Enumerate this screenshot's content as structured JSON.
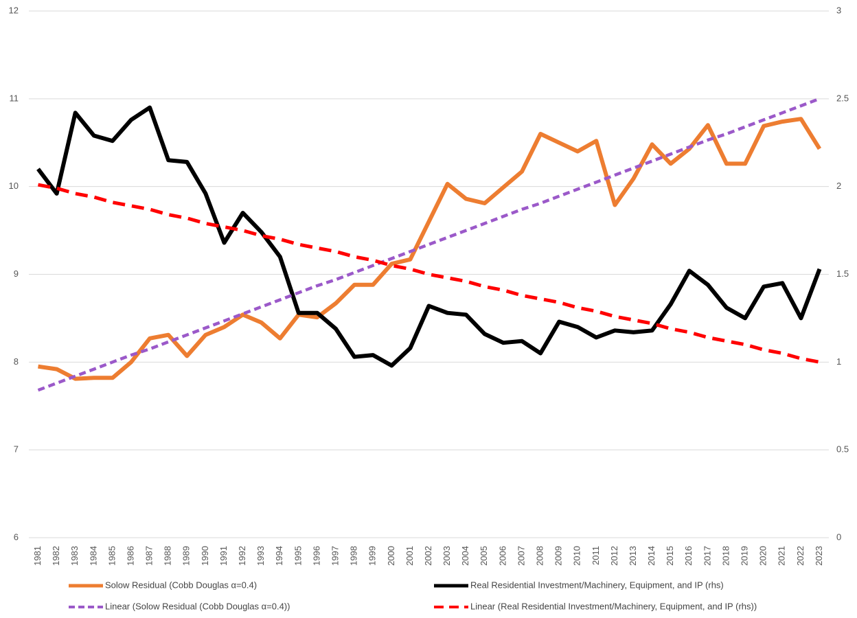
{
  "chart_data": {
    "type": "line",
    "categories": [
      "1981",
      "1982",
      "1983",
      "1984",
      "1985",
      "1986",
      "1987",
      "1988",
      "1989",
      "1990",
      "1991",
      "1992",
      "1993",
      "1994",
      "1995",
      "1996",
      "1997",
      "1998",
      "1999",
      "2000",
      "2001",
      "2002",
      "2003",
      "2004",
      "2005",
      "2006",
      "2007",
      "2008",
      "2009",
      "2010",
      "2011",
      "2012",
      "2013",
      "2014",
      "2015",
      "2016",
      "2017",
      "2018",
      "2019",
      "2020",
      "2021",
      "2022",
      "2023"
    ],
    "ylim": [
      6,
      12
    ],
    "yticks": [
      6,
      7,
      8,
      9,
      10,
      11,
      12
    ],
    "y2lim": [
      0,
      3
    ],
    "y2ticks": [
      0,
      0.5,
      1,
      1.5,
      2,
      2.5,
      3
    ],
    "grid": true,
    "legend": "bottom",
    "series": [
      {
        "name": "Solow Residual (Cobb Douglas α=0.4)",
        "color": "#ed7d31",
        "style": "solid",
        "axis": "y",
        "values": [
          7.95,
          7.92,
          7.81,
          7.82,
          7.82,
          8.0,
          8.27,
          8.31,
          8.07,
          8.31,
          8.4,
          8.54,
          8.45,
          8.27,
          8.54,
          8.51,
          8.67,
          8.88,
          8.88,
          9.12,
          9.17,
          9.6,
          10.03,
          9.86,
          9.81,
          9.99,
          10.17,
          10.6,
          10.5,
          10.4,
          10.52,
          9.79,
          10.09,
          10.48,
          10.26,
          10.43,
          10.7,
          10.26,
          10.26,
          10.69,
          10.74,
          10.77,
          10.43
        ]
      },
      {
        "name": "Real Residential Investment/Machinery, Equipment, and IP (rhs)",
        "color": "#000000",
        "style": "solid",
        "axis": "y2",
        "values": [
          2.1,
          1.96,
          2.42,
          2.29,
          2.26,
          2.38,
          2.45,
          2.15,
          2.14,
          1.96,
          1.68,
          1.85,
          1.74,
          1.6,
          1.28,
          1.28,
          1.19,
          1.03,
          1.04,
          0.98,
          1.08,
          1.32,
          1.28,
          1.27,
          1.16,
          1.11,
          1.12,
          1.05,
          1.23,
          1.2,
          1.14,
          1.18,
          1.17,
          1.18,
          1.33,
          1.52,
          1.44,
          1.31,
          1.25,
          1.43,
          1.45,
          1.25,
          1.53
        ]
      },
      {
        "name": "Linear (Solow Residual (Cobb Douglas α=0.4))",
        "color": "#9b59c9",
        "style": "dashed",
        "axis": "y",
        "values": [
          7.68,
          7.76,
          7.84,
          7.92,
          8.0,
          8.08,
          8.15,
          8.23,
          8.31,
          8.39,
          8.47,
          8.55,
          8.63,
          8.71,
          8.79,
          8.87,
          8.94,
          9.02,
          9.1,
          9.18,
          9.26,
          9.34,
          9.42,
          9.5,
          9.58,
          9.66,
          9.74,
          9.81,
          9.89,
          9.97,
          10.05,
          10.13,
          10.21,
          10.29,
          10.37,
          10.45,
          10.53,
          10.6,
          10.68,
          10.76,
          10.84,
          10.92,
          11.0
        ]
      },
      {
        "name": "Linear (Real Residential Investment/Machinery, Equipment, and IP (rhs))",
        "color": "#ff0000",
        "style": "dashed",
        "axis": "y2",
        "values": [
          2.01,
          1.99,
          1.96,
          1.94,
          1.91,
          1.89,
          1.87,
          1.84,
          1.82,
          1.79,
          1.77,
          1.75,
          1.72,
          1.7,
          1.67,
          1.65,
          1.63,
          1.6,
          1.58,
          1.55,
          1.53,
          1.5,
          1.48,
          1.46,
          1.43,
          1.41,
          1.38,
          1.36,
          1.34,
          1.31,
          1.29,
          1.26,
          1.24,
          1.22,
          1.19,
          1.17,
          1.14,
          1.12,
          1.1,
          1.07,
          1.05,
          1.02,
          1.0
        ]
      }
    ]
  }
}
